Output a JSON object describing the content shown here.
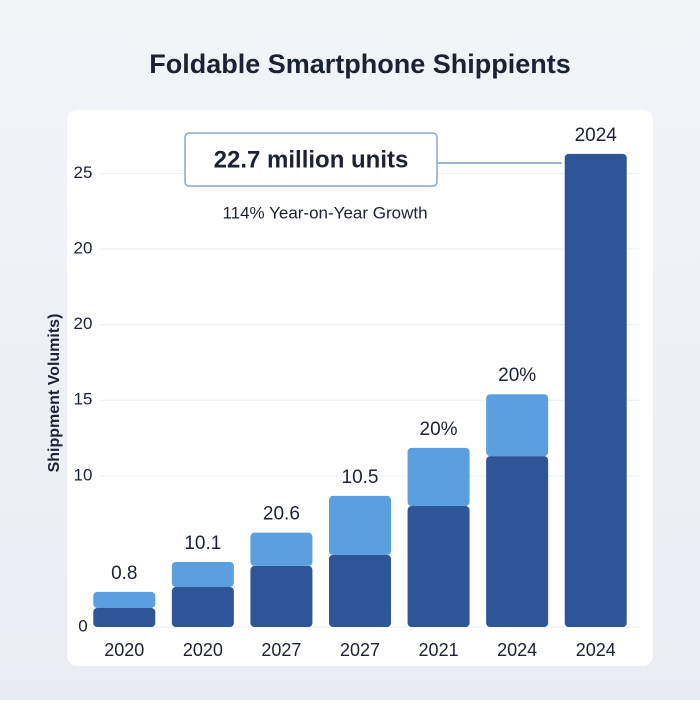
{
  "chart_data": {
    "type": "stacked_bar",
    "title": "Foldable Smartphone Shippients",
    "y_label": "Shippment Volumits)",
    "categories": [
      "2020",
      "2020",
      "2027",
      "2027",
      "2021",
      "2024",
      "2024"
    ],
    "series": [
      {
        "color": "#2e5597",
        "values": [
          1.26,
          2.65,
          4.04,
          4.77,
          8.0,
          11.3,
          31.3
        ]
      },
      {
        "color": "#5b9fdf",
        "values": [
          1.06,
          1.65,
          2.2,
          3.9,
          3.85,
          4.1,
          0
        ]
      }
    ],
    "bar_labels": [
      "0.8",
      "10.1",
      "20.6",
      "10.5",
      "20%",
      "20%",
      "2024"
    ],
    "callout": "22.7 million units",
    "callout_subtitle": "114% Year-on-Year Growth",
    "ylim": [
      0,
      34
    ],
    "yticks": [
      0,
      10,
      15,
      20,
      {
        "value": 25,
        "label": "20"
      },
      {
        "value": 30,
        "label": "25"
      }
    ],
    "grid": true
  }
}
